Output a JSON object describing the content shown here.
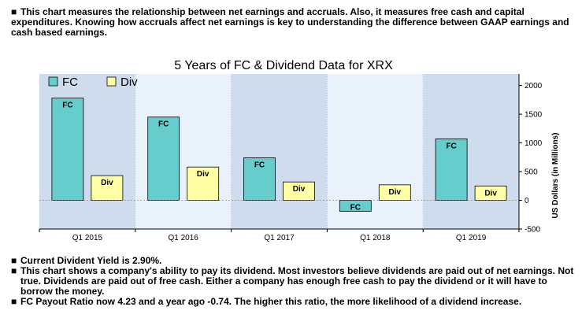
{
  "intro": {
    "bullet": "■",
    "text": "This chart measures the relationship between net earnings and accruals. Also, it measures free cash and capital expenditures. Knowing how accruals affect net earnings is key to understanding the difference between GAAP earnings and cash based earnings."
  },
  "chart_data": {
    "type": "bar",
    "title": "5 Years of FC & Dividend Data for XRX",
    "xlabel": "",
    "ylabel": "US Dollars (in Millions)",
    "categories": [
      "Q1 2015",
      "Q1 2016",
      "Q1 2017",
      "Q1 2018",
      "Q1 2019"
    ],
    "series": [
      {
        "name": "FC",
        "values": [
          1780,
          1450,
          740,
          -190,
          1070
        ],
        "color": "#66cccc",
        "bar_label": "FC"
      },
      {
        "name": "Div",
        "values": [
          430,
          580,
          320,
          270,
          250
        ],
        "color": "#ffffa6",
        "bar_label": "Div"
      }
    ],
    "ylim": [
      -500,
      2000
    ],
    "yticks": [
      -500,
      0,
      500,
      1000,
      1500,
      2000
    ],
    "ytick_labels": [
      "-500",
      "0",
      "500",
      "1000",
      "1500",
      "2000"
    ],
    "grid": false,
    "legend": "top-left",
    "band_colors": [
      "#cfdcee",
      "#e9f2fb"
    ]
  },
  "bottom_notes": [
    {
      "bullet": "■",
      "text": "Current Divident Yield is 2.90%."
    },
    {
      "bullet": "■",
      "text": "This chart shows a company's ability to pay its dividend. Most investors believe dividends are paid out of net earnings. Not true. Dividends are paid out of free cash. Either a company has enough free cash to pay the dividend or it will have to borrow the money."
    },
    {
      "bullet": "■",
      "text": "FC Payout Ratio now 4.23 and a year ago -0.74. The higher this ratio, the more likelihood of a dividend increase."
    }
  ]
}
